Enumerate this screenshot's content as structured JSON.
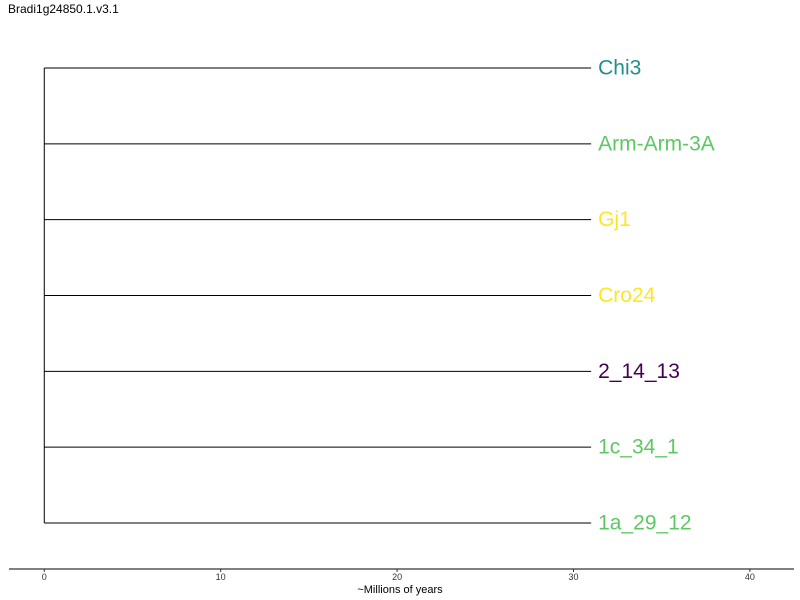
{
  "title": "Bradi1g24850.1.v3.1",
  "tree": {
    "root_age": 0,
    "tip_age": 31,
    "leaves": [
      {
        "label": "Chi3",
        "color": "#21908C"
      },
      {
        "label": "Arm-Arm-3A",
        "color": "#5DC863"
      },
      {
        "label": "Gj1",
        "color": "#FDE725"
      },
      {
        "label": "Cro24",
        "color": "#FDE725"
      },
      {
        "label": "2_14_13",
        "color": "#440154"
      },
      {
        "label": "1c_34_1",
        "color": "#5DC863"
      },
      {
        "label": "1a_29_12",
        "color": "#5DC863"
      }
    ]
  },
  "axis": {
    "label": "~Millions of years",
    "min": -2,
    "max": 42.5,
    "ticks": [
      {
        "value": 0,
        "label": "0"
      },
      {
        "value": 10,
        "label": "10"
      },
      {
        "value": 20,
        "label": "20"
      },
      {
        "value": 30,
        "label": "30"
      },
      {
        "value": 40,
        "label": "40"
      }
    ]
  },
  "colors": {
    "line": "#000000"
  }
}
